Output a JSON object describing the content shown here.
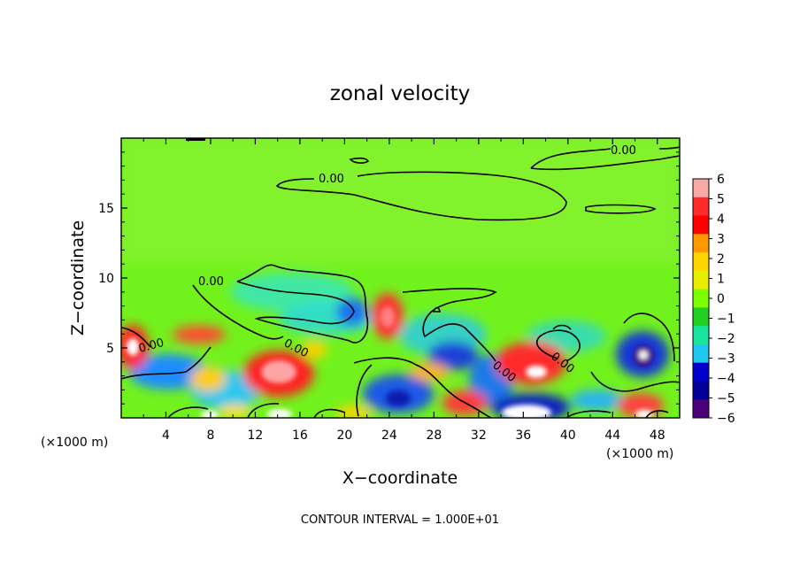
{
  "chart_data": {
    "type": "heatmap",
    "title": "zonal velocity",
    "xlabel": "X−coordinate",
    "ylabel": "Z−coordinate",
    "x_unit": "(×1000 m)",
    "x_unit_right": "(×1000 m)",
    "xlim": [
      0,
      50
    ],
    "ylim": [
      0,
      20
    ],
    "x_ticks": [
      4,
      8,
      12,
      16,
      20,
      24,
      28,
      32,
      36,
      40,
      44,
      48
    ],
    "y_ticks": [
      5,
      10,
      15
    ],
    "colorbar": {
      "ticks": [
        6,
        5,
        4,
        3,
        2,
        1,
        0,
        -1,
        -2,
        -3,
        -4,
        -5,
        -6
      ],
      "tick_labels": [
        "6",
        "5",
        "4",
        "3",
        "2",
        "1",
        "0",
        "−1",
        "−2",
        "−3",
        "−4",
        "−5",
        "−6"
      ],
      "range": [
        -6,
        6
      ],
      "colors": [
        "#f9a8a8",
        "#ff2a2a",
        "#ff0000",
        "#ff9900",
        "#ffd400",
        "#e9ee00",
        "#7cff00",
        "#22d022",
        "#17e49d",
        "#1fc6ef",
        "#0000cc",
        "#000099",
        "#4b007a"
      ]
    },
    "contour_labels": [
      "0.00",
      "0.00",
      "0.00",
      "0.00",
      "0.00",
      "0.00",
      "0.00"
    ],
    "contour_interval_text": "CONTOUR INTERVAL = 1.000E+01",
    "features": [
      {
        "x": 13.5,
        "z": 3.2,
        "value": 6
      },
      {
        "x": 23.5,
        "z": 7.2,
        "value": 5
      },
      {
        "x": 1.2,
        "z": 5.0,
        "value": 6
      },
      {
        "x": 37.0,
        "z": 3.5,
        "value": 6
      },
      {
        "x": 46.5,
        "z": 4.8,
        "value": -6
      },
      {
        "x": 20.5,
        "z": 7.6,
        "value": -3
      },
      {
        "x": 23.5,
        "z": 1.2,
        "value": -4
      },
      {
        "x": 30.5,
        "z": 4.5,
        "value": -4
      },
      {
        "x": 36.5,
        "z": 0.5,
        "value": -5
      },
      {
        "x": 46.5,
        "z": 0.8,
        "value": 6
      }
    ]
  }
}
